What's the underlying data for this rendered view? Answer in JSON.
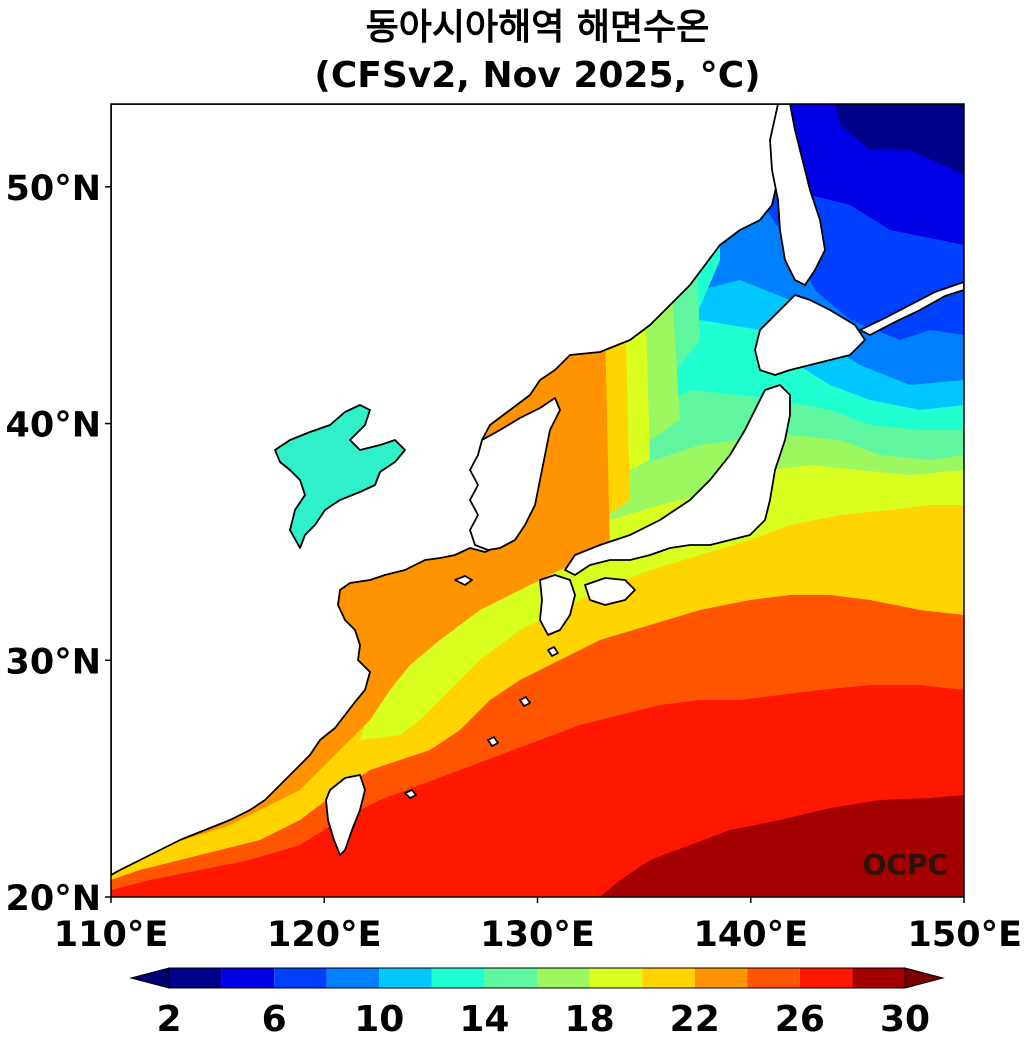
{
  "title": {
    "line1": "동아시아해역 해면수온",
    "line2": "(CFSv2, Nov 2025, °C)"
  },
  "watermark": "OCPC",
  "chart_data": {
    "type": "heatmap",
    "title": "동아시아해역 해면수온 (CFSv2, Nov 2025, °C)",
    "variable": "sea surface temperature",
    "units": "°C",
    "xlim": [
      110,
      150
    ],
    "ylim": [
      20,
      53.5
    ],
    "x_ticks": [
      110,
      120,
      130,
      140,
      150
    ],
    "x_tick_labels": [
      "110°E",
      "120°E",
      "130°E",
      "140°E",
      "150°E"
    ],
    "y_ticks": [
      20,
      30,
      40,
      50
    ],
    "y_tick_labels": [
      "20°N",
      "30°N",
      "40°N",
      "50°N"
    ],
    "colorbar": {
      "orientation": "horizontal",
      "extend": "both",
      "levels": [
        2,
        4,
        6,
        8,
        10,
        12,
        14,
        16,
        18,
        20,
        22,
        24,
        26,
        28,
        30
      ],
      "tick_values": [
        2,
        6,
        10,
        14,
        18,
        22,
        26,
        30
      ],
      "tick_labels": [
        "2",
        "6",
        "10",
        "14",
        "18",
        "22",
        "26",
        "30"
      ],
      "colors": [
        "#00008b",
        "#0000e6",
        "#0040ff",
        "#0080ff",
        "#00c8ff",
        "#20ffd0",
        "#60f7a0",
        "#9cf760",
        "#d8ff20",
        "#ffd400",
        "#ff9400",
        "#ff5500",
        "#ff1800",
        "#a50000"
      ],
      "under_color": "#000070",
      "over_color": "#7a0000"
    },
    "land_color": "#ffffff",
    "coastline_color": "#000000"
  }
}
